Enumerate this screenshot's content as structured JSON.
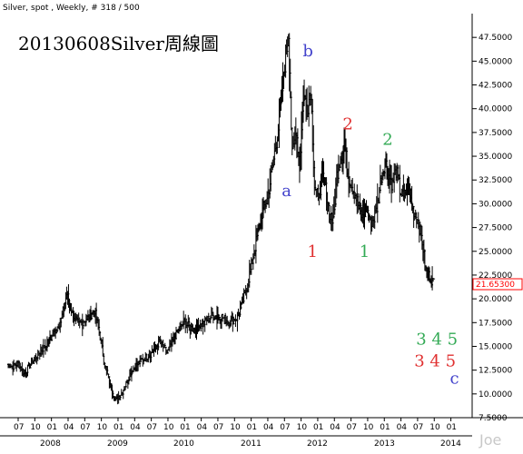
{
  "header": "Silver, spot , Weekly, # 318 / 500",
  "watermark": "Joe",
  "chart_data": {
    "type": "ohlc",
    "title": "20130608Silver周線圖",
    "ylim": [
      7.5,
      50
    ],
    "y_ticks": [
      7.5,
      10,
      12.5,
      15,
      17.5,
      20,
      22.5,
      25,
      27.5,
      30,
      32.5,
      35,
      37.5,
      40,
      42.5,
      45,
      47.5
    ],
    "y_tick_labels": [
      "7.5000",
      "10.0000",
      "12.5000",
      "15.0000",
      "17.5000",
      "20.0000",
      "22.5000",
      "25.0000",
      "27.5000",
      "30.0000",
      "32.5000",
      "35.0000",
      "37.5000",
      "40.0000",
      "42.5000",
      "45.0000",
      "47.5000"
    ],
    "x_month_labels": [
      "07",
      "10",
      "01",
      "04",
      "07",
      "10",
      "01",
      "04",
      "07",
      "10",
      "01",
      "04",
      "07",
      "10",
      "01",
      "04",
      "07",
      "10",
      "01",
      "04",
      "07",
      "10",
      "01",
      "04",
      "07",
      "10",
      "01"
    ],
    "x_year_labels": [
      "2008",
      "2009",
      "2010",
      "2011",
      "2012",
      "2013",
      "2014"
    ],
    "last_price": "21.65300",
    "price_points": [
      {
        "t": 0,
        "v": 13.1
      },
      {
        "t": 6,
        "v": 12.9
      },
      {
        "t": 12,
        "v": 13.2
      },
      {
        "t": 18,
        "v": 12.1
      },
      {
        "t": 26,
        "v": 13.3
      },
      {
        "t": 36,
        "v": 14.5
      },
      {
        "t": 48,
        "v": 16.0
      },
      {
        "t": 58,
        "v": 17.8
      },
      {
        "t": 64,
        "v": 20.5
      },
      {
        "t": 70,
        "v": 18.5
      },
      {
        "t": 76,
        "v": 17.2
      },
      {
        "t": 86,
        "v": 18.0
      },
      {
        "t": 94,
        "v": 18.8
      },
      {
        "t": 100,
        "v": 16.0
      },
      {
        "t": 104,
        "v": 13.5
      },
      {
        "t": 110,
        "v": 11.2
      },
      {
        "t": 116,
        "v": 9.3
      },
      {
        "t": 124,
        "v": 10.2
      },
      {
        "t": 134,
        "v": 12.5
      },
      {
        "t": 144,
        "v": 13.5
      },
      {
        "t": 154,
        "v": 14.2
      },
      {
        "t": 164,
        "v": 15.5
      },
      {
        "t": 172,
        "v": 14.3
      },
      {
        "t": 180,
        "v": 16.0
      },
      {
        "t": 190,
        "v": 17.5
      },
      {
        "t": 200,
        "v": 16.8
      },
      {
        "t": 210,
        "v": 17.3
      },
      {
        "t": 220,
        "v": 18.2
      },
      {
        "t": 230,
        "v": 18.2
      },
      {
        "t": 238,
        "v": 17.6
      },
      {
        "t": 248,
        "v": 18.0
      },
      {
        "t": 256,
        "v": 20.5
      },
      {
        "t": 262,
        "v": 23.0
      },
      {
        "t": 268,
        "v": 26.0
      },
      {
        "t": 274,
        "v": 29.0
      },
      {
        "t": 280,
        "v": 30.5
      },
      {
        "t": 286,
        "v": 34.0
      },
      {
        "t": 292,
        "v": 38.0
      },
      {
        "t": 298,
        "v": 44.0
      },
      {
        "t": 303,
        "v": 48.0
      },
      {
        "t": 307,
        "v": 35.0
      },
      {
        "t": 311,
        "v": 38.0
      },
      {
        "t": 315,
        "v": 34.0
      },
      {
        "t": 319,
        "v": 41.5
      },
      {
        "t": 323,
        "v": 40.0
      },
      {
        "t": 327,
        "v": 42.0
      },
      {
        "t": 331,
        "v": 32.0
      },
      {
        "t": 335,
        "v": 30.5
      },
      {
        "t": 339,
        "v": 33.0
      },
      {
        "t": 343,
        "v": 31.5
      },
      {
        "t": 347,
        "v": 29.0
      },
      {
        "t": 351,
        "v": 28.0
      },
      {
        "t": 355,
        "v": 33.0
      },
      {
        "t": 359,
        "v": 35.0
      },
      {
        "t": 363,
        "v": 36.5
      },
      {
        "t": 367,
        "v": 33.0
      },
      {
        "t": 371,
        "v": 32.0
      },
      {
        "t": 375,
        "v": 31.0
      },
      {
        "t": 379,
        "v": 29.5
      },
      {
        "t": 383,
        "v": 28.5
      },
      {
        "t": 387,
        "v": 29.5
      },
      {
        "t": 391,
        "v": 28.0
      },
      {
        "t": 395,
        "v": 28.5
      },
      {
        "t": 399,
        "v": 30.0
      },
      {
        "t": 403,
        "v": 33.0
      },
      {
        "t": 407,
        "v": 34.5
      },
      {
        "t": 411,
        "v": 33.0
      },
      {
        "t": 415,
        "v": 32.0
      },
      {
        "t": 419,
        "v": 33.5
      },
      {
        "t": 423,
        "v": 31.5
      },
      {
        "t": 427,
        "v": 30.5
      },
      {
        "t": 431,
        "v": 32.0
      },
      {
        "t": 435,
        "v": 30.0
      },
      {
        "t": 439,
        "v": 29.0
      },
      {
        "t": 443,
        "v": 28.0
      },
      {
        "t": 447,
        "v": 26.0
      },
      {
        "t": 451,
        "v": 23.0
      },
      {
        "t": 455,
        "v": 22.3
      },
      {
        "t": 459,
        "v": 21.7
      }
    ],
    "annotations": [
      {
        "text": "a",
        "color": "#4444cc",
        "t": 301,
        "v": 30.8
      },
      {
        "text": "b",
        "color": "#4444cc",
        "t": 324,
        "v": 45.5
      },
      {
        "text": "1",
        "color": "#e03030",
        "t": 329,
        "v": 24.4
      },
      {
        "text": "2",
        "color": "#e03030",
        "t": 367,
        "v": 37.8
      },
      {
        "text": "1",
        "color": "#33aa55",
        "t": 385,
        "v": 24.4
      },
      {
        "text": "2",
        "color": "#33aa55",
        "t": 410,
        "v": 36.2
      },
      {
        "text": "3 4 5",
        "color": "#33aa55",
        "t": 463,
        "v": 15.2
      },
      {
        "text": "3 4 5",
        "color": "#e03030",
        "t": 461,
        "v": 12.9
      },
      {
        "text": "c",
        "color": "#4444cc",
        "t": 482,
        "v": 11.1
      }
    ]
  }
}
